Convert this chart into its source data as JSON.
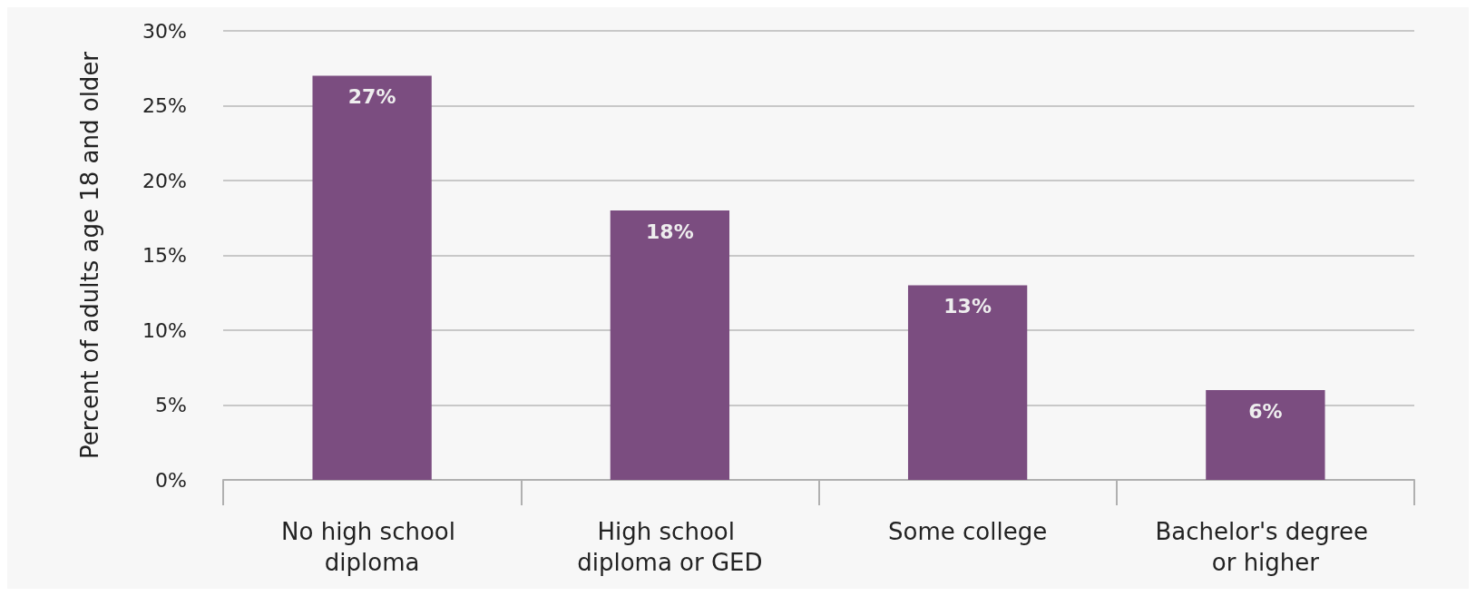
{
  "chart_data": {
    "type": "bar",
    "ylabel": "Percent of adults age 18 and older",
    "categories": [
      "No high school diploma",
      "High school diploma or GED",
      "Some college",
      "Bachelor's degree or higher"
    ],
    "values": [
      27,
      18,
      13,
      6
    ],
    "value_labels": [
      "27%",
      "18%",
      "13%",
      "6%"
    ],
    "color": "#7b4d80",
    "ylim": [
      0,
      30
    ],
    "yticks": [
      {
        "value": 0,
        "label": "0%"
      },
      {
        "value": 5,
        "label": "5%"
      },
      {
        "value": 10,
        "label": "10%"
      },
      {
        "value": 15,
        "label": "15%"
      },
      {
        "value": 20,
        "label": "20%"
      },
      {
        "value": 25,
        "label": "25%"
      },
      {
        "value": 30,
        "label": "30%"
      }
    ],
    "grid": "y"
  }
}
